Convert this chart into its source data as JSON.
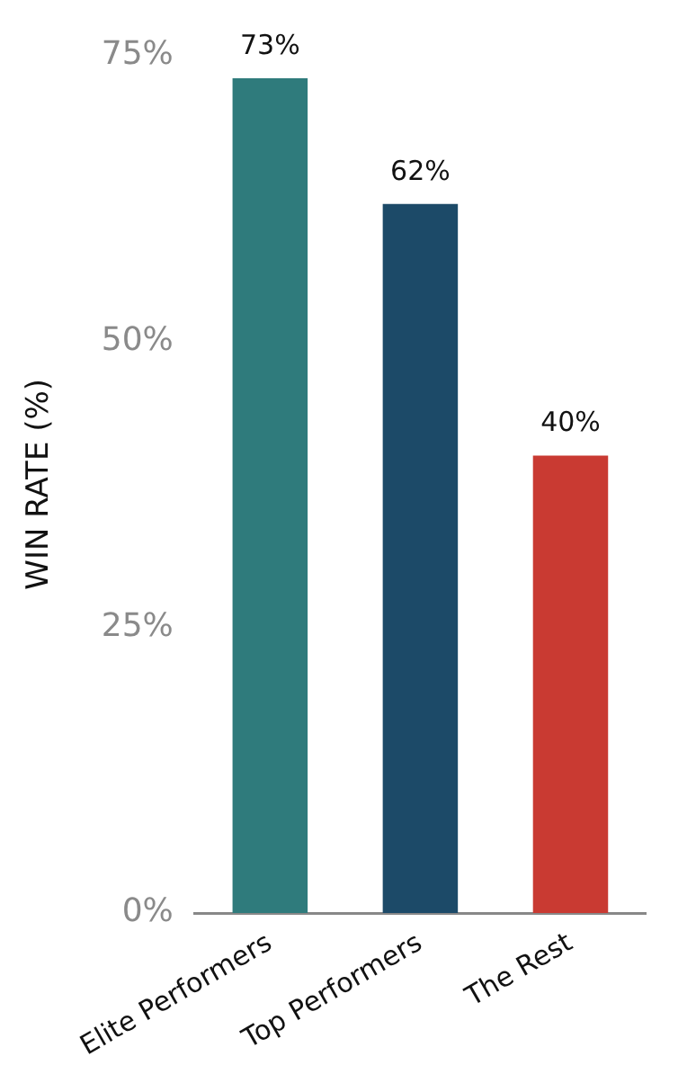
{
  "chart_data": {
    "type": "bar",
    "ylabel": "WIN RATE (%)",
    "categories": [
      "Elite Performers",
      "Top Performers",
      "The Rest"
    ],
    "values": [
      73,
      62,
      40
    ],
    "colors": [
      "#2f7b7c",
      "#1c4a68",
      "#c93a32"
    ],
    "value_labels": [
      "73%",
      "62%",
      "40%"
    ],
    "ylim": [
      0,
      75
    ],
    "yticks": [
      {
        "value": 0,
        "label": "0%"
      },
      {
        "value": 25,
        "label": "25%"
      },
      {
        "value": 50,
        "label": "50%"
      },
      {
        "value": 75,
        "label": "75%"
      }
    ],
    "grid": false,
    "legend": false
  }
}
